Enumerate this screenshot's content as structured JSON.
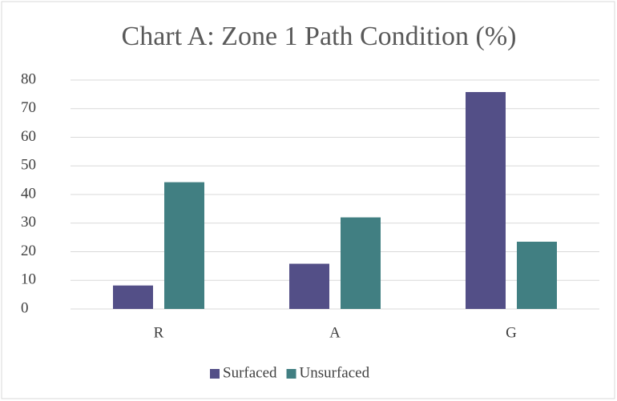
{
  "chart_data": {
    "type": "bar",
    "title": "Chart A: Zone 1 Path Condition (%)",
    "categories": [
      "R",
      "A",
      "G"
    ],
    "series": [
      {
        "name": "Surfaced",
        "color": "#534f87",
        "values": [
          8.2,
          15.8,
          75.8
        ]
      },
      {
        "name": "Unsurfaced",
        "color": "#417f82",
        "values": [
          44.3,
          32,
          23.5
        ]
      }
    ],
    "ylim": [
      0,
      80
    ],
    "yticks": [
      0,
      10,
      20,
      30,
      40,
      50,
      60,
      70,
      80
    ],
    "grid": true,
    "legend": "bottom"
  }
}
